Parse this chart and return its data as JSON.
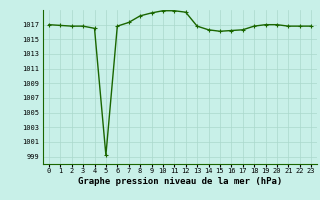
{
  "x": [
    0,
    1,
    2,
    3,
    4,
    5,
    6,
    7,
    8,
    9,
    10,
    11,
    12,
    13,
    14,
    15,
    16,
    17,
    18,
    19,
    20,
    21,
    22,
    23
  ],
  "y": [
    1017.0,
    1016.9,
    1016.8,
    1016.8,
    1016.5,
    999.2,
    1016.8,
    1017.3,
    1018.2,
    1018.6,
    1018.9,
    1018.9,
    1018.7,
    1016.8,
    1016.3,
    1016.1,
    1016.2,
    1016.3,
    1016.8,
    1017.0,
    1017.0,
    1016.8,
    1016.8,
    1016.8
  ],
  "line_color": "#1a6600",
  "marker_color": "#1a6600",
  "bg_color": "#c8f0e8",
  "grid_color": "#aad8cc",
  "xlabel": "Graphe pression niveau de la mer (hPa)",
  "ylim": [
    998.0,
    1019.0
  ],
  "yticks": [
    999,
    1001,
    1003,
    1005,
    1007,
    1009,
    1011,
    1013,
    1015,
    1017
  ],
  "xticks": [
    0,
    1,
    2,
    3,
    4,
    5,
    6,
    7,
    8,
    9,
    10,
    11,
    12,
    13,
    14,
    15,
    16,
    17,
    18,
    19,
    20,
    21,
    22,
    23
  ],
  "tick_fontsize": 5.0,
  "label_fontsize": 6.5,
  "marker_size": 2.5,
  "line_width": 1.0
}
